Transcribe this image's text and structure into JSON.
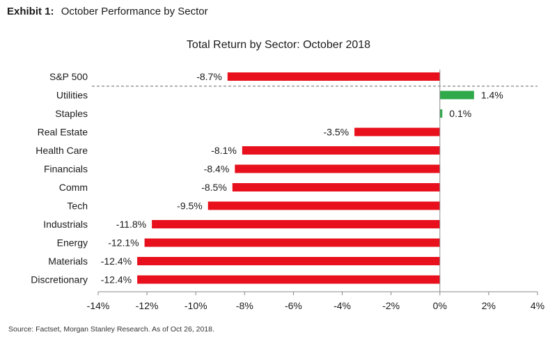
{
  "header": {
    "exhibit_label": "Exhibit 1:",
    "exhibit_title": "October Performance by Sector"
  },
  "footer": {
    "source": "Source: Factset, Morgan Stanley Research. As of Oct 26, 2018."
  },
  "colors": {
    "negative": "#e8101c",
    "positive": "#2eaa4a",
    "separator": "#666666",
    "axis": "#888888"
  },
  "chart_data": {
    "type": "bar",
    "orientation": "horizontal",
    "title": "Total Return by Sector: October 2018",
    "xlabel": "",
    "ylabel": "",
    "xlim": [
      -14,
      4
    ],
    "x_ticks": [
      "-14%",
      "-12%",
      "-10%",
      "-8%",
      "-6%",
      "-4%",
      "-2%",
      "0%",
      "2%",
      "4%"
    ],
    "categories": [
      "S&P 500",
      "Utilities",
      "Staples",
      "Real Estate",
      "Health Care",
      "Financials",
      "Comm",
      "Tech",
      "Industrials",
      "Energy",
      "Materials",
      "Discretionary"
    ],
    "values": [
      -8.7,
      1.4,
      0.1,
      -3.5,
      -8.1,
      -8.4,
      -8.5,
      -9.5,
      -11.8,
      -12.1,
      -12.4,
      -12.4
    ],
    "data_labels": [
      "-8.7%",
      "1.4%",
      "0.1%",
      "-3.5%",
      "-8.1%",
      "-8.4%",
      "-8.5%",
      "-9.5%",
      "-11.8%",
      "-12.1%",
      "-12.4%",
      "-12.4%"
    ],
    "grid": false,
    "legend": "none",
    "separator_after": "S&P 500"
  }
}
